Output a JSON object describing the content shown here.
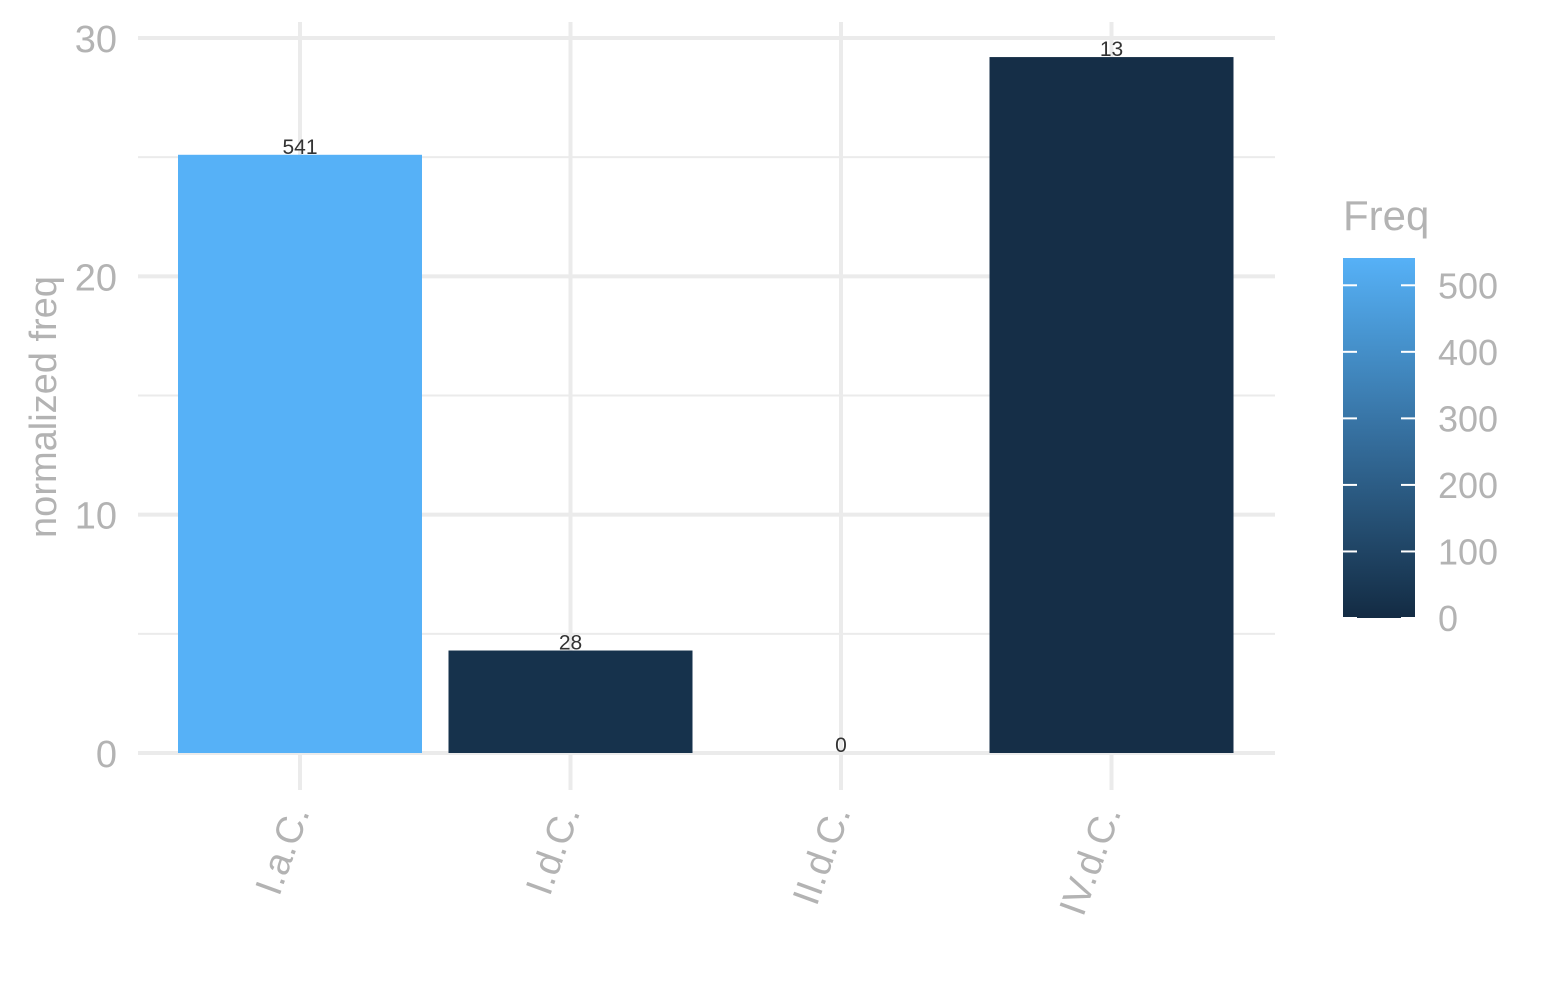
{
  "chart_data": {
    "type": "bar",
    "title": "",
    "xlabel": "",
    "ylabel": "normalized freq",
    "categories": [
      "I.a.C.",
      "I.d.C.",
      "II.d.C.",
      "IV.d.C."
    ],
    "values": [
      25.1,
      4.3,
      0,
      29.2
    ],
    "labels": [
      "541",
      "28",
      "0",
      "13"
    ],
    "freq": [
      541,
      28,
      0,
      13
    ],
    "ylim": [
      0,
      30
    ],
    "yticks": [
      0,
      10,
      20,
      30
    ],
    "grid": true,
    "legend": {
      "title": "Freq",
      "position": "right",
      "type": "colorbar",
      "range": [
        0,
        541
      ],
      "ticks": [
        0,
        100,
        200,
        300,
        400,
        500
      ],
      "color_low": "#132B43",
      "color_high": "#56B1F7"
    },
    "colors": {
      "grid": "#ebebeb",
      "axis_text": "#b3b3b3",
      "label_text": "#333333"
    }
  }
}
